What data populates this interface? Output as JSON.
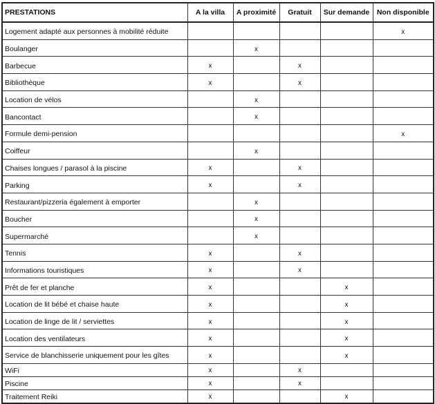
{
  "headers": [
    "PRESTATIONS",
    "A la villa",
    "A proximité",
    "Gratuit",
    "Sur demande",
    "Non disponible"
  ],
  "rows": [
    {
      "label": "Logement adapté aux personnes à mobilité réduite",
      "cells": [
        "",
        "",
        "",
        "",
        "x"
      ]
    },
    {
      "label": "Boulanger",
      "cells": [
        "",
        "x",
        "",
        "",
        ""
      ]
    },
    {
      "label": "Barbecue",
      "cells": [
        "x",
        "",
        "x",
        "",
        ""
      ]
    },
    {
      "label": "Bibliothèque",
      "cells": [
        "x",
        "",
        "x",
        "",
        ""
      ]
    },
    {
      "label": "Location de vélos",
      "cells": [
        "",
        "x",
        "",
        "",
        ""
      ]
    },
    {
      "label": "Bancontact",
      "cells": [
        "",
        "x",
        "",
        "",
        ""
      ]
    },
    {
      "label": "Formule demi-pension",
      "cells": [
        "",
        "",
        "",
        "",
        "x"
      ]
    },
    {
      "label": "Coiffeur",
      "cells": [
        "",
        "x",
        "",
        "",
        ""
      ]
    },
    {
      "label": "Chaises longues / parasol à la piscine",
      "cells": [
        "x",
        "",
        "x",
        "",
        ""
      ]
    },
    {
      "label": "Parking",
      "cells": [
        "x",
        "",
        "x",
        "",
        ""
      ]
    },
    {
      "label": "Restaurant/pizzeria également à emporter",
      "cells": [
        "",
        "x",
        "",
        "",
        ""
      ]
    },
    {
      "label": "Boucher",
      "cells": [
        "",
        "x",
        "",
        "",
        ""
      ]
    },
    {
      "label": "Supermarché",
      "cells": [
        "",
        "x",
        "",
        "",
        ""
      ]
    },
    {
      "label": "Tennis",
      "cells": [
        "x",
        "",
        "x",
        "",
        ""
      ]
    },
    {
      "label": "Informations touristiques",
      "cells": [
        "x",
        "",
        "x",
        "",
        ""
      ]
    },
    {
      "label": "Prêt de fer et planche",
      "cells": [
        "x",
        "",
        "",
        "x",
        ""
      ]
    },
    {
      "label": "Location de lit bébé et chaise haute",
      "cells": [
        "x",
        "",
        "",
        "x",
        ""
      ]
    },
    {
      "label": "Location de linge de lit / serviettes",
      "cells": [
        "x",
        "",
        "",
        "x",
        ""
      ]
    },
    {
      "label": "Location des ventilateurs",
      "cells": [
        "x",
        "",
        "",
        "x",
        ""
      ]
    },
    {
      "label": "Service de blanchisserie uniquement pour les gîtes",
      "cells": [
        "x",
        "",
        "",
        "x",
        ""
      ]
    },
    {
      "label": "WiFi",
      "cells": [
        "x",
        "",
        "x",
        "",
        ""
      ]
    },
    {
      "label": "Piscine",
      "cells": [
        "x",
        "",
        "x",
        "",
        ""
      ]
    },
    {
      "label": "Traitement Reiki",
      "cells": [
        "x",
        "",
        "",
        "x",
        ""
      ]
    }
  ]
}
